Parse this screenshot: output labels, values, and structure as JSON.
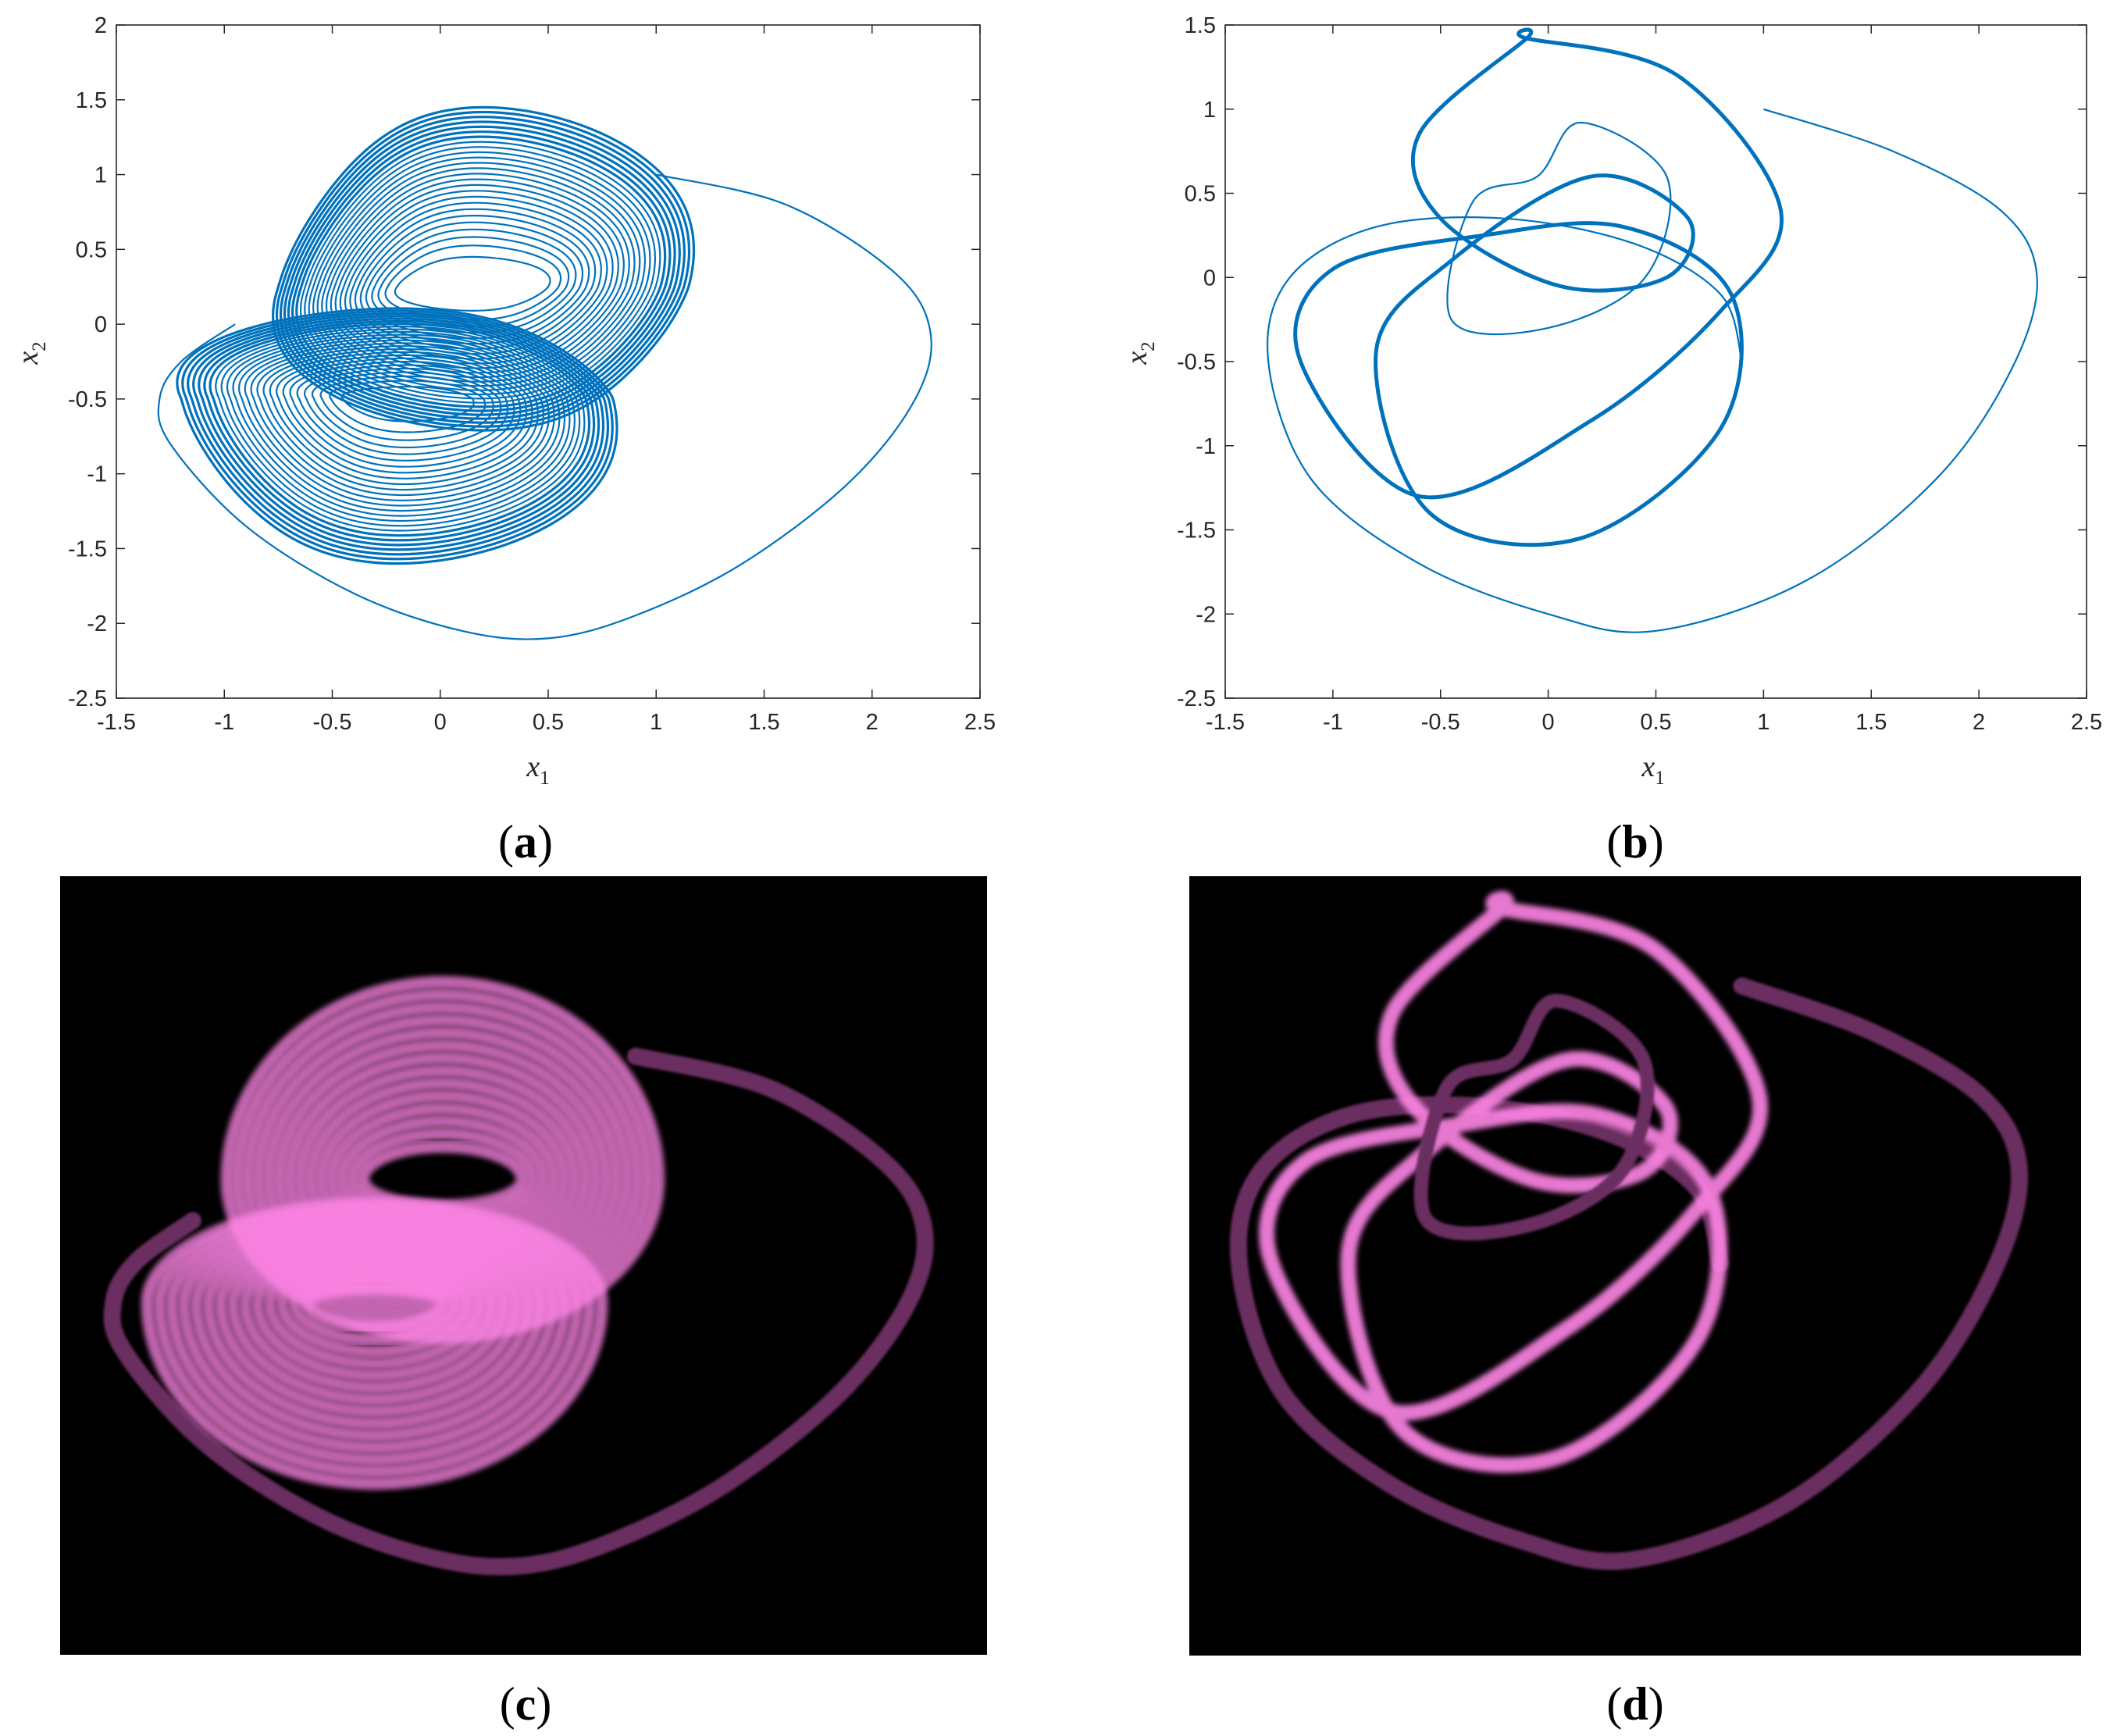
{
  "figure": {
    "panel_labels": [
      "(a)",
      "(b)",
      "(c)",
      "(d)"
    ]
  },
  "colors": {
    "trajectory": "#0072BD",
    "axes": "#262626",
    "image_background": "#000000",
    "image_bright": "#FF85E6",
    "image_dim": "#6B2E60"
  },
  "chart_data": [
    {
      "panel": "(a)",
      "type": "line",
      "title": "",
      "xlabel": "x1",
      "ylabel": "x2",
      "xlim": [
        -1.5,
        2.5
      ],
      "ylim": [
        -2.5,
        2
      ],
      "xticks": [
        "-1.5",
        "-1",
        "-0.5",
        "0",
        "0.5",
        "1",
        "1.5",
        "2",
        "2.5"
      ],
      "yticks": [
        "-2.5",
        "-2",
        "-1.5",
        "-1",
        "-0.5",
        "0",
        "0.5",
        "1",
        "1.5",
        "2"
      ],
      "grid": false,
      "series": [
        {
          "role": "transient",
          "x": [
            1.0,
            1.6,
            2.1,
            2.27,
            2.2,
            1.9,
            1.4,
            0.9,
            0.5,
            0.1,
            -0.4,
            -0.9,
            -1.25,
            -1.3,
            -1.2,
            -0.95
          ],
          "y": [
            1.0,
            0.8,
            0.35,
            -0.05,
            -0.5,
            -1.05,
            -1.6,
            -1.95,
            -2.1,
            -2.05,
            -1.8,
            -1.35,
            -0.8,
            -0.5,
            -0.25,
            0.0
          ]
        },
        {
          "role": "attractor-upper",
          "center": [
            0.15,
            0.25
          ],
          "rx": [
            0.35,
            0.95
          ],
          "ry": [
            0.2,
            1.2
          ]
        },
        {
          "role": "attractor-lower",
          "center": [
            -0.15,
            -0.5
          ],
          "rx": [
            0.3,
            1.0
          ],
          "ry": [
            0.15,
            1.1
          ]
        }
      ]
    },
    {
      "panel": "(b)",
      "type": "line",
      "title": "",
      "xlabel": "x1",
      "ylabel": "x2",
      "xlim": [
        -1.5,
        2.5
      ],
      "ylim": [
        -2.5,
        1.5
      ],
      "xticks": [
        "-1.5",
        "-1",
        "-0.5",
        "0",
        "0.5",
        "1",
        "1.5",
        "2",
        "2.5"
      ],
      "yticks": [
        "-2.5",
        "-2",
        "-1.5",
        "-1",
        "-0.5",
        "0",
        "0.5",
        "1",
        "1.5"
      ],
      "grid": false,
      "series": [
        {
          "role": "transient",
          "x": [
            1.0,
            1.6,
            2.1,
            2.27,
            2.15,
            1.8,
            1.2,
            0.5,
            0.0,
            -0.6,
            -1.1,
            -1.3,
            -1.2,
            -0.8,
            -0.2,
            0.4,
            0.8,
            0.9
          ],
          "y": [
            1.0,
            0.75,
            0.4,
            0.0,
            -0.55,
            -1.2,
            -1.8,
            -2.1,
            -2.0,
            -1.7,
            -1.2,
            -0.5,
            0.0,
            0.3,
            0.35,
            0.2,
            -0.1,
            -0.5
          ]
        },
        {
          "role": "limit-cycle-outer",
          "x": [
            -0.1,
            0.6,
            1.08,
            0.8,
            0.2,
            -0.6,
            -1.15,
            -1.0,
            -0.3,
            0.35,
            0.85,
            0.8,
            0.15,
            -0.55,
            -0.8,
            -0.45,
            0.2,
            0.65,
            0.55,
            0.05,
            -0.5,
            -0.6,
            -0.1
          ],
          "y": [
            1.42,
            1.2,
            0.4,
            -0.2,
            -0.85,
            -1.3,
            -0.5,
            0.05,
            0.25,
            0.3,
            -0.1,
            -0.9,
            -1.55,
            -1.4,
            -0.45,
            0.1,
            0.6,
            0.35,
            0.0,
            -0.05,
            0.35,
            0.85,
            1.42
          ]
        }
      ]
    }
  ],
  "images": [
    {
      "panel": "(c)",
      "description_role": "encrypted-render",
      "source_panel": "(a)"
    },
    {
      "panel": "(d)",
      "description_role": "encrypted-render",
      "source_panel": "(b)"
    }
  ]
}
